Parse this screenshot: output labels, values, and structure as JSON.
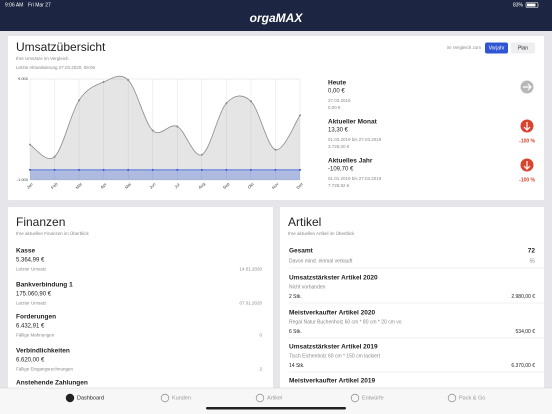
{
  "status_bar": {
    "time": "9:06 AM",
    "date": "Fri Mar 27",
    "battery": "83%"
  },
  "header": {
    "logo": "orgaMAX"
  },
  "overview": {
    "title": "Umsatzübersicht",
    "subtitle": "Ihre Umsätze im Vergleich",
    "updated": "Letzte Aktualisierung 27.03.2020, 09:06",
    "compare_label": "im Vergleich zum",
    "buttons": [
      "Vorjahr",
      "Plan"
    ],
    "chart": {
      "type": "line",
      "categories": [
        "Jan",
        "Feb",
        "Mär",
        "Apr",
        "Mai",
        "Jun",
        "Jul",
        "Aug",
        "Sep",
        "Okt",
        "Nov",
        "Dez"
      ],
      "series": [
        {
          "color": "#8a8a8a",
          "values": [
            2500,
            1300,
            6900,
            8700,
            8900,
            3900,
            4300,
            1500,
            6600,
            6800,
            2000,
            5400
          ]
        },
        {
          "color": "#2f55d4",
          "values": [
            0,
            0,
            0,
            0,
            0,
            0,
            0,
            0,
            0,
            0,
            0,
            0
          ]
        }
      ],
      "ylim": [
        -1000,
        9000
      ],
      "yticks": [
        {
          "value": -1000,
          "label": "-1.000"
        },
        {
          "value": 9000,
          "label": "9.000"
        }
      ],
      "grid": true
    },
    "kpis": [
      {
        "label": "Heute",
        "value": "0,00 €",
        "ref_date": "27.03.2019",
        "ref_value": "0,00 €"
      },
      {
        "label": "Aktueller Monat",
        "value": "13,30 €",
        "ref_date": "01.03.2019 bis 27.03.2019",
        "ref_value": "3.726,00 €",
        "change": "-100 %"
      },
      {
        "label": "Aktuelles Jahr",
        "value": "-109,70 €",
        "ref_date": "01.01.2019 bis 27.03.2019",
        "ref_value": "7.728,82 €",
        "change": "-100 %"
      }
    ]
  },
  "finance": {
    "title": "Finanzen",
    "subtitle": "Ihre aktuellen Finanzen im Überblick",
    "items": [
      {
        "label": "Kasse",
        "value": "5.364,99 €",
        "detail_label": "Letzter Umsatz",
        "detail_value": "14.01.2020"
      },
      {
        "label": "Bankverbindung 1",
        "value": "175.060,90 €",
        "detail_label": "Letzter Umsatz",
        "detail_value": "07.01.2020"
      },
      {
        "label": "Forderungen",
        "value": "6.432,91 €",
        "detail_label": "Fällige Mahnungen",
        "detail_value": 0
      },
      {
        "label": "Verbindlichkeiten",
        "value": "6.620,00 €",
        "detail_label": "Fällige Eingangsrechnungen",
        "detail_value": 2
      },
      {
        "label": "Anstehende Zahlungen"
      }
    ]
  },
  "articles": {
    "title": "Artikel",
    "subtitle": "Ihre aktuellen Artikel im Überblick",
    "total": {
      "label": "Gesamt",
      "value": 72,
      "sub_label": "Davon mind. einmal verkauft",
      "sub_value": 55
    },
    "items": [
      {
        "label": "Umsatzstärkster Artikel 2020",
        "name": "Nicht vorhanden",
        "quantity": "2 Stk.",
        "amount": "2.980,00 €"
      },
      {
        "label": "Meistverkaufter Artikel 2020",
        "name": "Regal Natur Buchenholz 60 cm * 80 cm * 20 cm vo",
        "quantity": "6 Stk.",
        "amount": "534,00 €"
      },
      {
        "label": "Umsatzstärkster Artikel 2019",
        "name": "Tisch Eichenholz 60 cm * 150 cm lackiert",
        "quantity": "14 Stk.",
        "amount": "6.370,00 €"
      },
      {
        "label": "Meistverkaufter Artikel 2019"
      }
    ]
  },
  "tabs": [
    "Dashboard",
    "Kunden",
    "Artikel",
    "Entwürfe",
    "Pack & Go"
  ]
}
